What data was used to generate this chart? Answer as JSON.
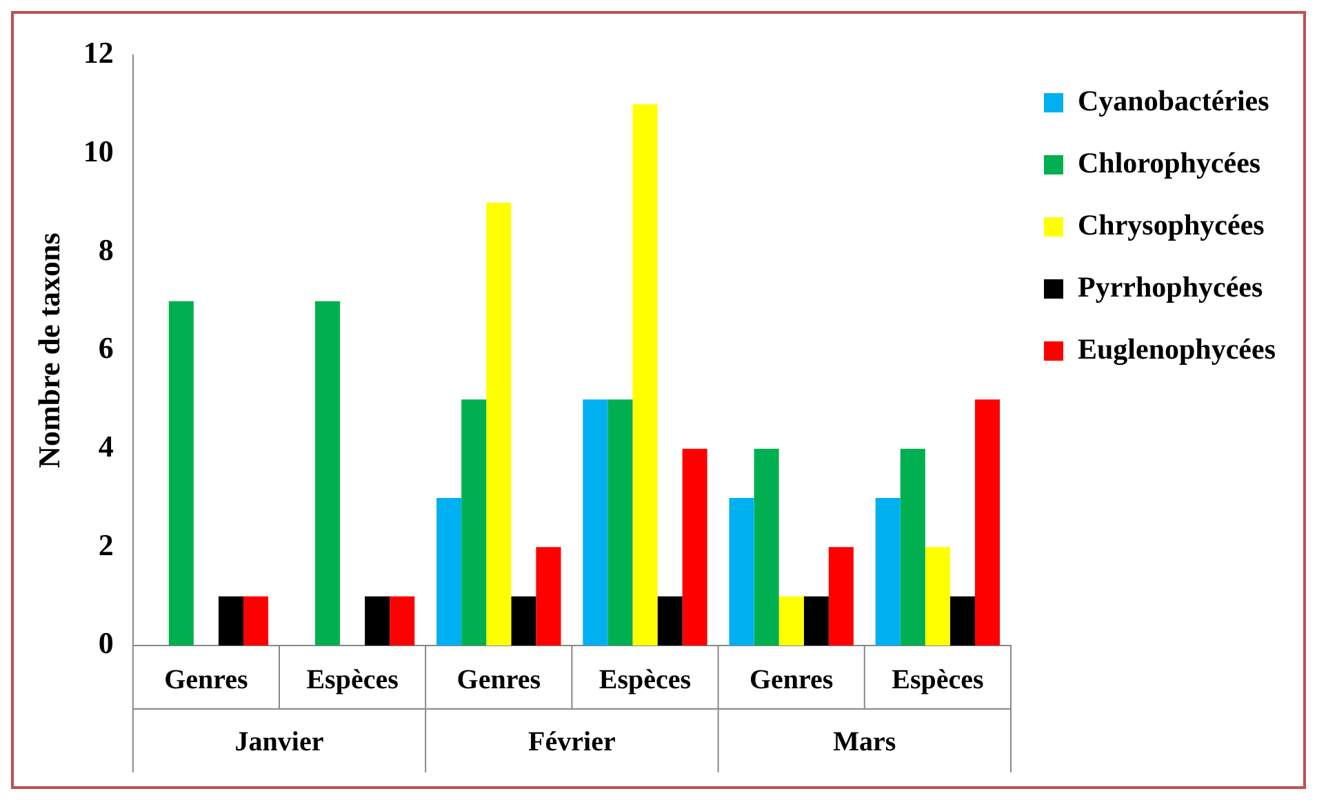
{
  "chart_data": {
    "type": "bar",
    "ylabel": "Nombre de taxons",
    "categories": [
      "Genres",
      "Espèces",
      "Genres",
      "Espèces",
      "Genres",
      "Espèces"
    ],
    "annotations": [
      "Janvier",
      "Février",
      "Mars"
    ],
    "series": [
      {
        "name": "Cyanobactéries",
        "color": "#00b0f0",
        "values": [
          0,
          0,
          3,
          5,
          3,
          3
        ]
      },
      {
        "name": "Chlorophycées",
        "color": "#00b050",
        "values": [
          7,
          7,
          5,
          5,
          4,
          4
        ]
      },
      {
        "name": "Chrysophycées",
        "color": "#ffff00",
        "values": [
          0,
          0,
          9,
          11,
          1,
          2
        ]
      },
      {
        "name": "Pyrrhophycées",
        "color": "#000000",
        "values": [
          1,
          1,
          1,
          1,
          1,
          1
        ]
      },
      {
        "name": "Euglenophycées",
        "color": "#ff0000",
        "values": [
          1,
          1,
          2,
          4,
          2,
          5
        ]
      }
    ],
    "ylim": [
      0,
      12
    ],
    "yticks": [
      0,
      2,
      4,
      6,
      8,
      10,
      12
    ],
    "grid": false,
    "legend": "top right"
  }
}
